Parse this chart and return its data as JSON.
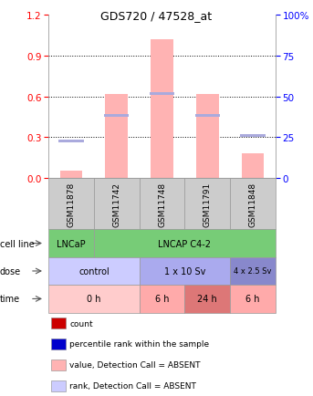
{
  "title": "GDS720 / 47528_at",
  "samples": [
    "GSM11878",
    "GSM11742",
    "GSM11748",
    "GSM11791",
    "GSM11848"
  ],
  "bar_values": [
    0.05,
    0.62,
    1.02,
    0.62,
    0.18
  ],
  "rank_values": [
    0.27,
    0.46,
    0.62,
    0.46,
    0.31
  ],
  "bar_color": "#ffb3b3",
  "rank_color": "#aaaadd",
  "ylim_left": [
    0,
    1.2
  ],
  "ylim_right": [
    0,
    100
  ],
  "yticks_left": [
    0,
    0.3,
    0.6,
    0.9,
    1.2
  ],
  "yticks_right": [
    0,
    25,
    50,
    75,
    100
  ],
  "cell_line_color_lncap": "#77cc77",
  "cell_line_color_c42": "#77cc77",
  "dose_color_control": "#ccccff",
  "dose_color_1x10": "#aaaaee",
  "dose_color_4x25": "#8888cc",
  "time_color_0h": "#ffcccc",
  "time_color_6h_1": "#ffaaaa",
  "time_color_24h": "#dd7777",
  "time_color_6h_2": "#ffaaaa",
  "legend_items": [
    {
      "label": "count",
      "color": "#cc0000"
    },
    {
      "label": "percentile rank within the sample",
      "color": "#0000cc"
    },
    {
      "label": "value, Detection Call = ABSENT",
      "color": "#ffb3b3"
    },
    {
      "label": "rank, Detection Call = ABSENT",
      "color": "#ccccff"
    }
  ],
  "background_color": "#ffffff"
}
